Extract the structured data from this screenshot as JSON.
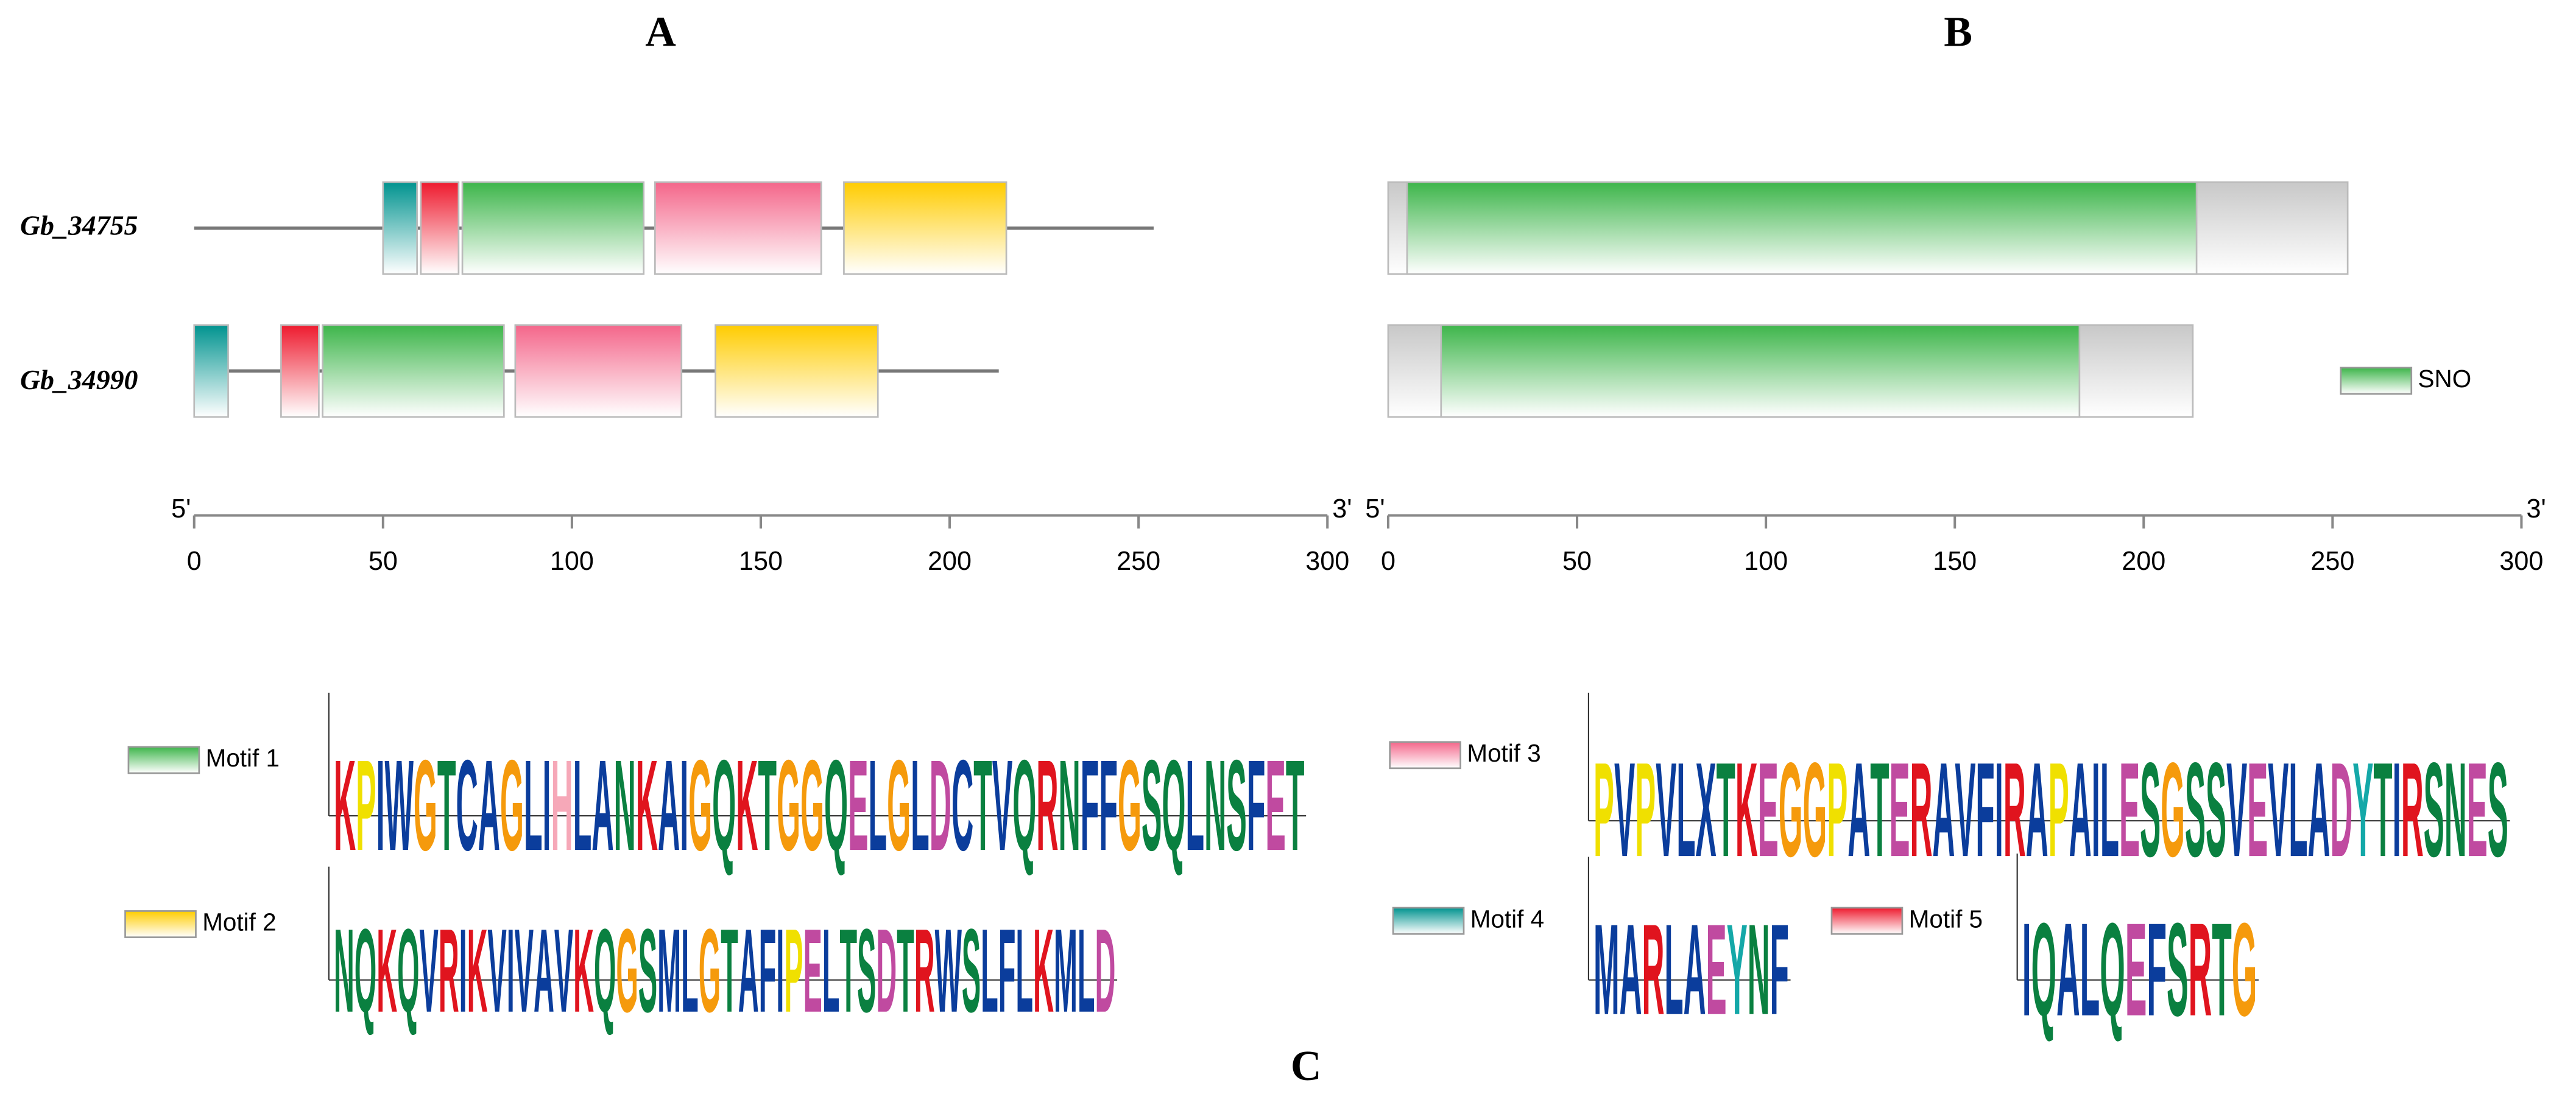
{
  "panel_labels": [
    "A",
    "B",
    "C"
  ],
  "genes": [
    {
      "name": "Gb_34755",
      "length": 254
    },
    {
      "name": "Gb_34990",
      "length": 213
    }
  ],
  "axis": {
    "start_label": "5'",
    "end_label": "3'",
    "lim": [
      0,
      300
    ],
    "ticks": [
      0,
      50,
      100,
      150,
      200,
      250,
      300
    ]
  },
  "motifs": [
    {
      "name": "Motif 1",
      "color": "#3db54a",
      "consensus": "KPIWGTCAGLIHLANKAIGQKTGGQELGLDCTVQRNFFGSQLNSFET",
      "sites": [
        [
          71,
          119
        ],
        [
          34,
          82
        ]
      ]
    },
    {
      "name": "Motif 2",
      "color": "#ffcc00",
      "consensus": "NQKQVRIKVIVAVKQGSMLGTAFIPELTSDTRWSLFLKMLD",
      "sites": [
        [
          172,
          215
        ],
        [
          138,
          181
        ]
      ]
    },
    {
      "name": "Motif 3",
      "color": "#f4668a",
      "consensus": "PVPVLXTKEGGPATERAVFIRAPAILESGSSVEVLADYTIRSNES",
      "sites": [
        [
          122,
          166
        ],
        [
          85,
          129
        ]
      ]
    },
    {
      "name": "Motif 4",
      "color": "#00938f",
      "consensus": "MARLAEYNF",
      "sites": [
        [
          50,
          59
        ],
        [
          0,
          9
        ]
      ]
    },
    {
      "name": "Motif 5",
      "color": "#ee1a2e",
      "consensus": "IQALQEFSRTG",
      "sites": [
        [
          60,
          70
        ],
        [
          23,
          33
        ]
      ]
    }
  ],
  "domain": {
    "name": "SNO",
    "color": "#3db54a",
    "sites": [
      [
        5,
        214
      ],
      [
        14,
        183
      ]
    ]
  }
}
